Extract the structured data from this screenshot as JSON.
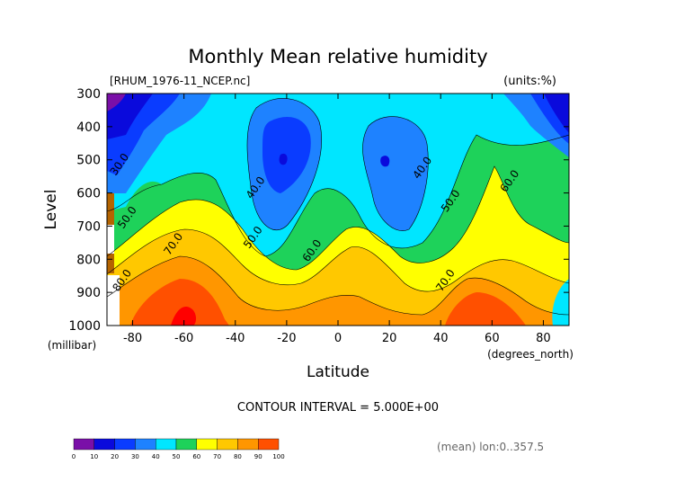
{
  "chart_data": {
    "type": "contour",
    "title": "Monthly Mean relative humidity",
    "file_label": "[RHUM_1976-11_NCEP.nc]",
    "units_label": "(units:%)",
    "xlabel": "Latitude",
    "xunit_label": "(degrees_north)",
    "ylabel": "Level",
    "yunit_label": "(millibar)",
    "xlim": [
      -90,
      90
    ],
    "ylim": [
      1000,
      300
    ],
    "x_ticks": [
      -80,
      -60,
      -40,
      -20,
      0,
      20,
      40,
      60,
      80
    ],
    "y_ticks": [
      300,
      400,
      500,
      600,
      700,
      800,
      900,
      1000
    ],
    "contour_interval_text": "CONTOUR INTERVAL = 5.000E+00",
    "footer_text": "(mean) lon:0..357.5",
    "colorbar": {
      "levels": [
        0,
        10,
        20,
        30,
        40,
        50,
        60,
        70,
        80,
        90,
        100
      ],
      "colors": [
        "#7a0fa8",
        "#0a0adc",
        "#0a3cff",
        "#1e82ff",
        "#00e6ff",
        "#1ed25a",
        "#ffff00",
        "#ffc800",
        "#ff9600",
        "#ff5000"
      ]
    },
    "fill_colors": {
      "10-20": "#0a0adc",
      "20-30": "#0a3cff",
      "30-40": "#1e82ff",
      "40-50": "#00e6ff",
      "50-60": "#1ed25a",
      "60-70": "#ffff00",
      "70-80": "#ffc800",
      "80-90": "#ff9600",
      "90-100": "#ff5000",
      "100+": "#ff0000",
      "missing": "#b46400"
    },
    "contour_labels": [
      {
        "text": "30.0",
        "lat": -84,
        "p": 520
      },
      {
        "text": "50.0",
        "lat": -81,
        "p": 680
      },
      {
        "text": "70.0",
        "lat": -63,
        "p": 760
      },
      {
        "text": "80.0",
        "lat": -83,
        "p": 870
      },
      {
        "text": "40.0",
        "lat": -31,
        "p": 590
      },
      {
        "text": "50.0",
        "lat": -32,
        "p": 740
      },
      {
        "text": "60.0",
        "lat": -9,
        "p": 780
      },
      {
        "text": "40.0",
        "lat": 34,
        "p": 530
      },
      {
        "text": "50.0",
        "lat": 45,
        "p": 630
      },
      {
        "text": "60.0",
        "lat": 68,
        "p": 570
      },
      {
        "text": "70.0",
        "lat": 43,
        "p": 870
      }
    ],
    "regions": [
      {
        "level": "50-60",
        "lat": 0,
        "p": 650
      },
      {
        "level": "40-50",
        "lat": -40,
        "p": 350
      },
      {
        "level": "30-40",
        "lat": -22,
        "p": 440
      },
      {
        "level": "20-30",
        "lat": -18,
        "p": 470
      },
      {
        "level": "30-40",
        "lat": 18,
        "p": 500
      },
      {
        "level": "20-30",
        "lat": 17,
        "p": 495
      },
      {
        "level": "40-50",
        "lat": 70,
        "p": 330
      },
      {
        "level": "30-40",
        "lat": 80,
        "p": 310
      },
      {
        "level": "20-30",
        "lat": 86,
        "p": 320
      },
      {
        "level": "10-20",
        "lat": -84,
        "p": 315
      },
      {
        "level": "60-70",
        "lat": 60,
        "p": 650
      },
      {
        "level": "70-80",
        "lat": -10,
        "p": 900
      },
      {
        "level": "80-90",
        "lat": -60,
        "p": 920
      },
      {
        "level": "90-100",
        "lat": -60,
        "p": 970
      },
      {
        "level": "80-90",
        "lat": 55,
        "p": 930
      }
    ]
  }
}
